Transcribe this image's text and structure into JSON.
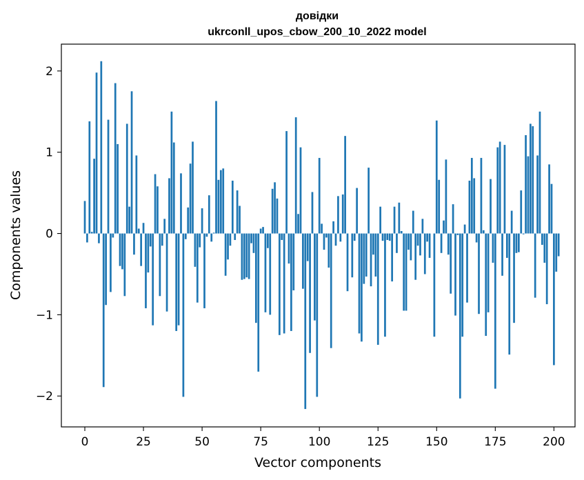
{
  "chart_data": {
    "type": "bar",
    "title": "довідки",
    "subtitle": "ukrconll_upos_cbow_200_10_2022 model",
    "xlabel": "Vector components",
    "ylabel": "Components values",
    "xlim": [
      -10,
      209
    ],
    "ylim": [
      -2.38,
      2.33
    ],
    "x_ticks": [
      0,
      25,
      50,
      75,
      100,
      125,
      150,
      175,
      200
    ],
    "y_ticks": [
      -2,
      -1,
      0,
      1,
      2
    ],
    "y_tick_labels": [
      "−2",
      "−1",
      "0",
      "1",
      "2"
    ],
    "grid": false,
    "bar_color": "#1f77b4",
    "values": [
      0.4,
      -0.11,
      1.38,
      0.02,
      0.92,
      1.98,
      -0.12,
      2.12,
      -1.89,
      -0.88,
      1.4,
      -0.72,
      -0.05,
      1.85,
      1.1,
      -0.4,
      -0.44,
      -0.77,
      1.35,
      0.33,
      1.75,
      -0.26,
      0.96,
      0.06,
      -0.4,
      0.13,
      -0.92,
      -0.48,
      -0.16,
      -1.13,
      0.73,
      0.58,
      -0.77,
      -0.15,
      0.18,
      -0.96,
      0.68,
      1.5,
      1.12,
      -1.2,
      -1.13,
      0.74,
      -2.01,
      -0.07,
      0.32,
      0.86,
      1.13,
      -0.41,
      -0.85,
      -0.17,
      0.31,
      -0.92,
      -0.04,
      0.47,
      -0.1,
      0.01,
      1.63,
      0.66,
      0.78,
      0.8,
      -0.52,
      -0.32,
      -0.15,
      0.65,
      -0.08,
      0.53,
      0.34,
      -0.57,
      -0.56,
      -0.54,
      -0.56,
      -0.12,
      -0.24,
      -1.1,
      -1.7,
      0.06,
      0.08,
      -0.97,
      -0.18,
      -1.0,
      0.55,
      0.63,
      0.43,
      -1.25,
      -0.08,
      -1.23,
      1.26,
      -0.37,
      -1.2,
      -0.7,
      1.43,
      0.24,
      1.06,
      -0.68,
      -2.16,
      -0.34,
      -1.47,
      0.51,
      -1.07,
      -2.01,
      0.93,
      0.12,
      -0.2,
      -0.05,
      -0.42,
      -1.41,
      0.15,
      -0.15,
      0.46,
      -0.1,
      0.48,
      1.2,
      -0.71,
      0.0,
      -0.54,
      -0.09,
      0.56,
      -1.23,
      -1.33,
      -0.62,
      -0.53,
      0.81,
      -0.65,
      -0.26,
      -0.53,
      -1.37,
      0.33,
      -0.09,
      -1.27,
      -0.08,
      -0.09,
      -0.59,
      0.33,
      -0.24,
      0.38,
      0.03,
      -0.95,
      -0.95,
      -0.2,
      -0.33,
      0.28,
      -0.57,
      -0.15,
      -0.27,
      0.18,
      -0.5,
      -0.1,
      -0.3,
      0.0,
      -1.27,
      1.39,
      0.66,
      -0.24,
      0.16,
      0.91,
      -0.26,
      -0.74,
      0.36,
      -1.01,
      -0.02,
      -2.03,
      -1.27,
      0.11,
      -0.85,
      0.65,
      0.93,
      0.68,
      -0.11,
      -0.99,
      0.93,
      0.04,
      -1.26,
      -0.97,
      0.67,
      -0.36,
      -1.91,
      1.06,
      1.13,
      -0.52,
      1.09,
      -0.3,
      -1.49,
      0.28,
      -1.1,
      -0.24,
      -0.23,
      0.53,
      -0.01,
      1.21,
      0.95,
      1.35,
      1.32,
      -0.79,
      0.96,
      1.5,
      -0.14,
      -0.36,
      -0.87,
      0.85,
      0.61,
      -1.62,
      -0.47,
      -0.28
    ]
  }
}
